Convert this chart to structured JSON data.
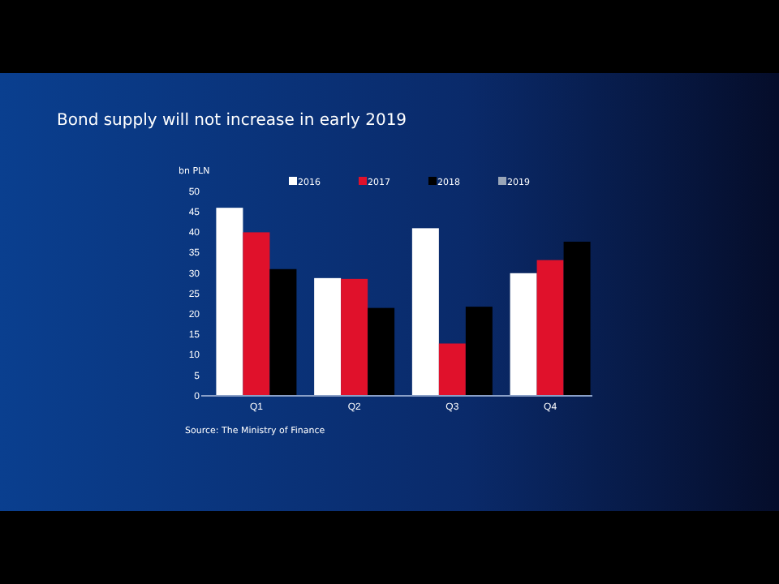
{
  "chart_data": {
    "type": "bar",
    "title": "Bond supply will not increase in early 2019",
    "ylabel": "bn PLN",
    "categories": [
      "Q1",
      "Q2",
      "Q3",
      "Q4"
    ],
    "series": [
      {
        "name": "2016",
        "color": "#ffffff",
        "values": [
          46,
          28.8,
          41,
          30
        ]
      },
      {
        "name": "2017",
        "color": "#e0112b",
        "values": [
          40,
          28.6,
          12.8,
          33.2
        ]
      },
      {
        "name": "2018",
        "color": "#000000",
        "values": [
          31,
          21.5,
          21.8,
          37.7
        ]
      },
      {
        "name": "2019",
        "color": "#9aa6b8",
        "values": [
          null,
          null,
          null,
          null
        ]
      }
    ],
    "ylim": [
      0,
      50
    ],
    "yticks": [
      0,
      5,
      10,
      15,
      20,
      25,
      30,
      35,
      40,
      45,
      50
    ],
    "grid": false,
    "legend": "top",
    "annotations": [
      "Source: The Ministry of Finance"
    ]
  }
}
